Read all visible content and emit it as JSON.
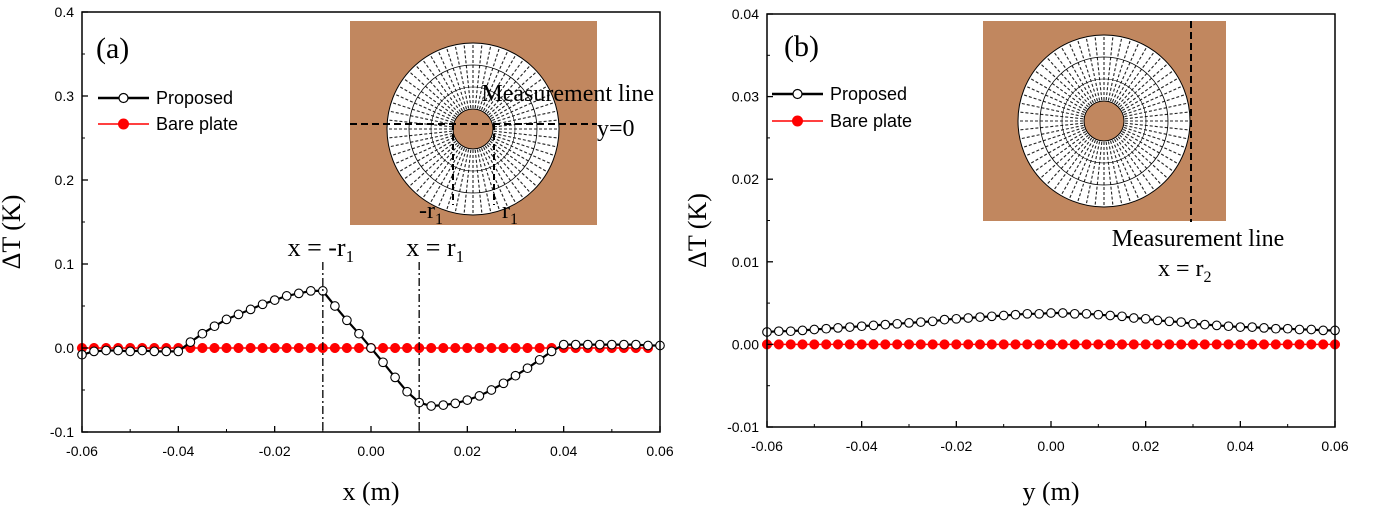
{
  "chart_data": [
    {
      "type": "line",
      "panel_label": "(a)",
      "xlabel": "x (m)",
      "ylabel": "ΔT (K)",
      "xlim": [
        -0.06,
        0.06
      ],
      "ylim": [
        -0.1,
        0.4
      ],
      "x_ticks": [
        -0.06,
        -0.04,
        -0.02,
        0.0,
        0.02,
        0.04,
        0.06
      ],
      "x_tick_labels": [
        "-0.06",
        "-0.04",
        "-0.02",
        "0.00",
        "0.02",
        "0.04",
        "0.06"
      ],
      "y_ticks": [
        -0.1,
        0.0,
        0.1,
        0.2,
        0.3,
        0.4
      ],
      "y_tick_labels": [
        "-0.1",
        "0.0",
        "0.1",
        "0.2",
        "0.3",
        "0.4"
      ],
      "grid": false,
      "legend_position": "upper-left",
      "series": [
        {
          "name": "Proposed",
          "color": "#000000",
          "marker": "open-circle",
          "x": [
            -0.06,
            -0.0575,
            -0.055,
            -0.0525,
            -0.05,
            -0.0475,
            -0.045,
            -0.0425,
            -0.04,
            -0.0375,
            -0.035,
            -0.0325,
            -0.03,
            -0.0275,
            -0.025,
            -0.0225,
            -0.02,
            -0.0175,
            -0.015,
            -0.0125,
            -0.01,
            -0.0075,
            -0.005,
            -0.0025,
            0.0,
            0.0025,
            0.005,
            0.0075,
            0.01,
            0.0125,
            0.015,
            0.0175,
            0.02,
            0.0225,
            0.025,
            0.0275,
            0.03,
            0.0325,
            0.035,
            0.0375,
            0.04,
            0.0425,
            0.045,
            0.0475,
            0.05,
            0.0525,
            0.055,
            0.0575,
            0.06
          ],
          "y": [
            -0.008,
            -0.004,
            -0.003,
            -0.003,
            -0.004,
            -0.003,
            -0.004,
            -0.004,
            -0.004,
            0.007,
            0.017,
            0.026,
            0.034,
            0.04,
            0.046,
            0.052,
            0.057,
            0.062,
            0.065,
            0.068,
            0.068,
            0.05,
            0.033,
            0.017,
            0.0,
            -0.017,
            -0.035,
            -0.052,
            -0.065,
            -0.069,
            -0.068,
            -0.066,
            -0.062,
            -0.057,
            -0.05,
            -0.042,
            -0.033,
            -0.024,
            -0.014,
            -0.004,
            0.004,
            0.004,
            0.004,
            0.004,
            0.004,
            0.004,
            0.004,
            0.003,
            0.003
          ]
        },
        {
          "name": "Bare plate",
          "color": "#ff0000",
          "marker": "filled-circle",
          "x": [
            -0.06,
            -0.0575,
            -0.055,
            -0.0525,
            -0.05,
            -0.0475,
            -0.045,
            -0.0425,
            -0.04,
            -0.0375,
            -0.035,
            -0.0325,
            -0.03,
            -0.0275,
            -0.025,
            -0.0225,
            -0.02,
            -0.0175,
            -0.015,
            -0.0125,
            -0.01,
            -0.0075,
            -0.005,
            -0.0025,
            0.0,
            0.0025,
            0.005,
            0.0075,
            0.01,
            0.0125,
            0.015,
            0.0175,
            0.02,
            0.0225,
            0.025,
            0.0275,
            0.03,
            0.0325,
            0.035,
            0.0375,
            0.04,
            0.0425,
            0.045,
            0.0475,
            0.05,
            0.0525,
            0.055,
            0.0575
          ],
          "y": [
            0,
            0,
            0,
            0,
            0,
            0,
            0,
            0,
            0,
            0,
            0,
            0,
            0,
            0,
            0,
            0,
            0,
            0,
            0,
            0,
            0,
            0,
            0,
            0,
            0,
            0,
            0,
            0,
            0,
            0,
            0,
            0,
            0,
            0,
            0,
            0,
            0,
            0,
            0,
            0,
            0,
            0,
            0,
            0,
            0,
            0,
            0,
            0
          ]
        }
      ],
      "annotations": {
        "vline_left": {
          "x": -0.01,
          "label_prefix": "x = -r",
          "label_sub": "1"
        },
        "vline_right": {
          "x": 0.01,
          "label_prefix": "x = r",
          "label_sub": "1"
        }
      },
      "inset": {
        "plate_color": "#c1875f",
        "measurement_label": "Measurement line",
        "line_label": "y=0",
        "marker_left_prefix": "-r",
        "marker_right_prefix": "r",
        "marker_sub": "1"
      }
    },
    {
      "type": "line",
      "panel_label": "(b)",
      "xlabel": "y (m)",
      "ylabel": "ΔT (K)",
      "xlim": [
        -0.06,
        0.06
      ],
      "ylim": [
        -0.01,
        0.04
      ],
      "x_ticks": [
        -0.06,
        -0.04,
        -0.02,
        0.0,
        0.02,
        0.04,
        0.06
      ],
      "x_tick_labels": [
        "-0.06",
        "-0.04",
        "-0.02",
        "0.00",
        "0.02",
        "0.04",
        "0.06"
      ],
      "y_ticks": [
        -0.01,
        0.0,
        0.01,
        0.02,
        0.03,
        0.04
      ],
      "y_tick_labels": [
        "-0.01",
        "0.00",
        "0.01",
        "0.02",
        "0.03",
        "0.04"
      ],
      "grid": false,
      "legend_position": "upper-left",
      "series": [
        {
          "name": "Proposed",
          "color": "#000000",
          "marker": "open-circle",
          "x": [
            -0.06,
            -0.0575,
            -0.055,
            -0.0525,
            -0.05,
            -0.0475,
            -0.045,
            -0.0425,
            -0.04,
            -0.0375,
            -0.035,
            -0.0325,
            -0.03,
            -0.0275,
            -0.025,
            -0.0225,
            -0.02,
            -0.0175,
            -0.015,
            -0.0125,
            -0.01,
            -0.0075,
            -0.005,
            -0.0025,
            0.0,
            0.0025,
            0.005,
            0.0075,
            0.01,
            0.0125,
            0.015,
            0.0175,
            0.02,
            0.0225,
            0.025,
            0.0275,
            0.03,
            0.0325,
            0.035,
            0.0375,
            0.04,
            0.0425,
            0.045,
            0.0475,
            0.05,
            0.0525,
            0.055,
            0.0575,
            0.06
          ],
          "y": [
            0.0015,
            0.0016,
            0.0016,
            0.0017,
            0.0018,
            0.0019,
            0.002,
            0.0021,
            0.0022,
            0.0023,
            0.0024,
            0.0025,
            0.0026,
            0.0027,
            0.0028,
            0.003,
            0.0031,
            0.0032,
            0.0033,
            0.0034,
            0.0035,
            0.0036,
            0.0037,
            0.0037,
            0.0038,
            0.0038,
            0.0037,
            0.0037,
            0.0036,
            0.0035,
            0.0034,
            0.0032,
            0.0031,
            0.0029,
            0.0028,
            0.0027,
            0.0025,
            0.0024,
            0.0023,
            0.0022,
            0.0021,
            0.0021,
            0.002,
            0.0019,
            0.0019,
            0.0018,
            0.0018,
            0.0017,
            0.0017
          ]
        },
        {
          "name": "Bare plate",
          "color": "#ff0000",
          "marker": "filled-circle",
          "x": [
            -0.06,
            -0.0575,
            -0.055,
            -0.0525,
            -0.05,
            -0.0475,
            -0.045,
            -0.0425,
            -0.04,
            -0.0375,
            -0.035,
            -0.0325,
            -0.03,
            -0.0275,
            -0.025,
            -0.0225,
            -0.02,
            -0.0175,
            -0.015,
            -0.0125,
            -0.01,
            -0.0075,
            -0.005,
            -0.0025,
            0.0,
            0.0025,
            0.005,
            0.0075,
            0.01,
            0.0125,
            0.015,
            0.0175,
            0.02,
            0.0225,
            0.025,
            0.0275,
            0.03,
            0.0325,
            0.035,
            0.0375,
            0.04,
            0.0425,
            0.045,
            0.0475,
            0.05,
            0.0525,
            0.055,
            0.0575,
            0.06
          ],
          "y": [
            0,
            0,
            0,
            0,
            0,
            0,
            0,
            0,
            0,
            0,
            0,
            0,
            0,
            0,
            0,
            0,
            0,
            0,
            0,
            0,
            0,
            0,
            0,
            0,
            0,
            0,
            0,
            0,
            0,
            0,
            0,
            0,
            0,
            0,
            0,
            0,
            0,
            0,
            0,
            0,
            0,
            0,
            0,
            0,
            0,
            0,
            0,
            0,
            0
          ]
        }
      ],
      "inset": {
        "plate_color": "#c1875f",
        "measurement_label": "Measurement line",
        "line_label_prefix": "x = r",
        "line_label_sub": "2"
      }
    }
  ]
}
